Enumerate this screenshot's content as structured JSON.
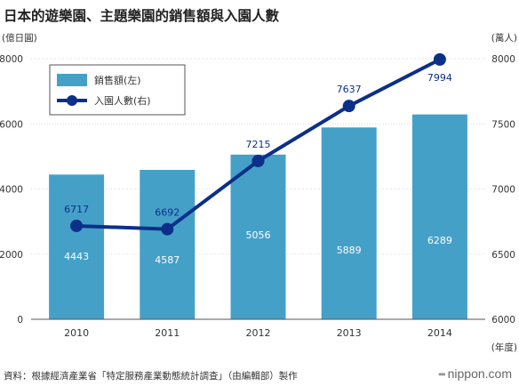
{
  "title": "日本的遊樂園、主題樂園的銷售額與入園人數",
  "source": "資料：根據經濟產業省「特定服務產業動態統計調查」（由編輯部）製作",
  "brand": "nippon.com",
  "chart_data": {
    "type": "bar+line",
    "categories": [
      "2010",
      "2011",
      "2012",
      "2013",
      "2014"
    ],
    "series": [
      {
        "name": "銷售額(左)",
        "type": "bar",
        "axis": "left",
        "color": "#45a0c8",
        "values": [
          4443,
          4587,
          5056,
          5889,
          6289
        ],
        "labels": [
          "4443",
          "4587",
          "5056",
          "5889",
          "6289"
        ]
      },
      {
        "name": "入園人數(右)",
        "type": "line",
        "axis": "right",
        "color": "#0c2f8a",
        "values": [
          6717,
          6692,
          7215,
          7637,
          7994
        ],
        "labels": [
          "6717",
          "6692",
          "7215",
          "7637",
          "7994"
        ]
      }
    ],
    "left_axis": {
      "unit": "(億日圓)",
      "ylim": [
        0,
        8000
      ],
      "ticks": [
        "0",
        "2000",
        "4000",
        "6000",
        "8000"
      ]
    },
    "right_axis": {
      "unit": "(萬人)",
      "ylim": [
        6000,
        8000
      ],
      "ticks": [
        "6000",
        "6500",
        "7000",
        "7500",
        "8000"
      ]
    },
    "xunit": "(年度)",
    "grid": true,
    "legend": "top-left"
  }
}
